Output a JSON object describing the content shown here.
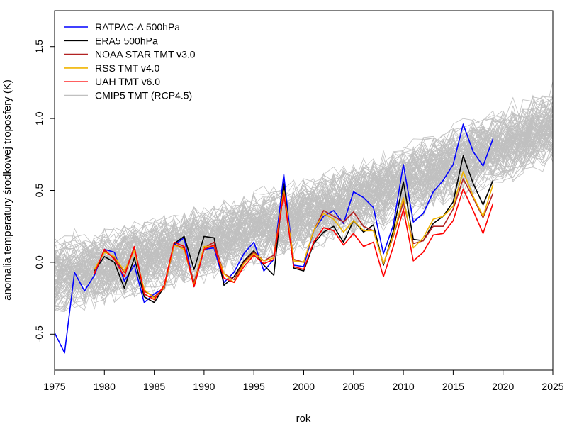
{
  "chart_data": {
    "type": "line",
    "xlabel": "rok",
    "ylabel": "anomalia temperatury środkowej troposfery (K)",
    "xlim": [
      1975,
      2025
    ],
    "ylim": [
      -0.75,
      1.75
    ],
    "xticks": [
      1975,
      1980,
      1985,
      1990,
      1995,
      2000,
      2005,
      2010,
      2015,
      2020,
      2025
    ],
    "yticks": [
      -0.5,
      0.0,
      0.5,
      1.0,
      1.5
    ],
    "xtick_labels": [
      "1975",
      "1980",
      "1985",
      "1990",
      "1995",
      "2000",
      "2005",
      "2010",
      "2015",
      "2020",
      "2025"
    ],
    "ytick_labels": [
      "-0.5",
      "0.0",
      "0.5",
      "1.0",
      "1.5"
    ],
    "grid": false,
    "legend_position": "top-left",
    "series": [
      {
        "name": "RATPAC-A 500hPa",
        "color": "#0000ff",
        "x": [
          1975,
          1976,
          1977,
          1978,
          1979,
          1980,
          1981,
          1982,
          1983,
          1984,
          1985,
          1986,
          1987,
          1988,
          1989,
          1990,
          1991,
          1992,
          1993,
          1994,
          1995,
          1996,
          1997,
          1998,
          1999,
          2000,
          2001,
          2002,
          2003,
          2004,
          2005,
          2006,
          2007,
          2008,
          2009,
          2010,
          2011,
          2012,
          2013,
          2014,
          2015,
          2016,
          2017,
          2018,
          2019
        ],
        "values": [
          -0.49,
          -0.63,
          -0.07,
          -0.2,
          -0.09,
          0.09,
          0.07,
          -0.13,
          -0.02,
          -0.28,
          -0.22,
          -0.18,
          0.12,
          0.17,
          -0.17,
          0.09,
          0.1,
          -0.14,
          -0.07,
          0.06,
          0.14,
          -0.06,
          0.02,
          0.61,
          -0.02,
          -0.03,
          0.22,
          0.32,
          0.36,
          0.27,
          0.49,
          0.45,
          0.38,
          0.06,
          0.26,
          0.68,
          0.28,
          0.34,
          0.49,
          0.57,
          0.68,
          0.96,
          0.77,
          0.67,
          0.86
        ]
      },
      {
        "name": "ERA5 500hPa",
        "color": "#000000",
        "x": [
          1979,
          1980,
          1981,
          1982,
          1983,
          1984,
          1985,
          1986,
          1987,
          1988,
          1989,
          1990,
          1991,
          1992,
          1993,
          1994,
          1995,
          1996,
          1997,
          1998,
          1999,
          2000,
          2001,
          2002,
          2003,
          2004,
          2005,
          2006,
          2007,
          2008,
          2009,
          2010,
          2011,
          2012,
          2013,
          2014,
          2015,
          2016,
          2017,
          2018,
          2019
        ],
        "values": [
          -0.06,
          0.04,
          0.0,
          -0.18,
          0.03,
          -0.24,
          -0.28,
          -0.17,
          0.13,
          0.18,
          -0.05,
          0.18,
          0.17,
          -0.16,
          -0.1,
          0.01,
          0.08,
          -0.02,
          -0.09,
          0.55,
          -0.04,
          -0.06,
          0.13,
          0.21,
          0.25,
          0.14,
          0.29,
          0.21,
          0.26,
          -0.02,
          0.22,
          0.56,
          0.16,
          0.15,
          0.27,
          0.32,
          0.42,
          0.74,
          0.55,
          0.4,
          0.57
        ]
      },
      {
        "name": "NOAA STAR TMT v3.0",
        "color": "#b22222",
        "x": [
          1979,
          1980,
          1981,
          1982,
          1983,
          1984,
          1985,
          1986,
          1987,
          1988,
          1989,
          1990,
          1991,
          1992,
          1993,
          1994,
          1995,
          1996,
          1997,
          1998,
          1999,
          2000,
          2001,
          2002,
          2003,
          2004,
          2005,
          2006,
          2007,
          2008,
          2009,
          2010,
          2011,
          2012,
          2013,
          2014,
          2015,
          2016,
          2017,
          2018,
          2019
        ],
        "values": [
          -0.07,
          0.08,
          0.03,
          -0.07,
          0.1,
          -0.2,
          -0.24,
          -0.18,
          0.12,
          0.1,
          -0.14,
          0.1,
          0.14,
          -0.08,
          -0.12,
          0.0,
          0.07,
          0.01,
          0.05,
          0.5,
          0.02,
          0.0,
          0.22,
          0.36,
          0.32,
          0.28,
          0.35,
          0.25,
          0.22,
          -0.01,
          0.18,
          0.42,
          0.13,
          0.15,
          0.25,
          0.25,
          0.37,
          0.58,
          0.45,
          0.31,
          0.48
        ]
      },
      {
        "name": "RSS TMT v4.0",
        "color": "#f0b400",
        "x": [
          1979,
          1980,
          1981,
          1982,
          1983,
          1984,
          1985,
          1986,
          1987,
          1988,
          1989,
          1990,
          1991,
          1992,
          1993,
          1994,
          1995,
          1996,
          1997,
          1998,
          1999,
          2000,
          2001,
          2002,
          2003,
          2004,
          2005,
          2006,
          2007,
          2008,
          2009,
          2010,
          2011,
          2012,
          2013,
          2014,
          2015,
          2016,
          2017,
          2018,
          2019
        ],
        "values": [
          -0.05,
          0.07,
          0.04,
          -0.06,
          0.08,
          -0.19,
          -0.25,
          -0.17,
          0.12,
          0.09,
          -0.16,
          0.11,
          0.11,
          -0.08,
          -0.14,
          -0.01,
          0.06,
          0.01,
          0.03,
          0.5,
          0.01,
          0.0,
          0.22,
          0.34,
          0.3,
          0.21,
          0.29,
          0.22,
          0.22,
          -0.01,
          0.19,
          0.45,
          0.1,
          0.17,
          0.3,
          0.32,
          0.39,
          0.63,
          0.46,
          0.32,
          0.54
        ]
      },
      {
        "name": "UAH TMT v6.0",
        "color": "#ff0000",
        "x": [
          1979,
          1980,
          1981,
          1982,
          1983,
          1984,
          1985,
          1986,
          1987,
          1988,
          1989,
          1990,
          1991,
          1992,
          1993,
          1994,
          1995,
          1996,
          1997,
          1998,
          1999,
          2000,
          2001,
          2002,
          2003,
          2004,
          2005,
          2006,
          2007,
          2008,
          2009,
          2010,
          2011,
          2012,
          2013,
          2014,
          2015,
          2016,
          2017,
          2018,
          2019
        ],
        "values": [
          -0.08,
          0.09,
          0.02,
          -0.1,
          0.11,
          -0.22,
          -0.26,
          -0.16,
          0.14,
          0.11,
          -0.17,
          0.09,
          0.12,
          -0.11,
          -0.14,
          -0.03,
          0.05,
          -0.01,
          0.02,
          0.48,
          -0.03,
          -0.05,
          0.14,
          0.24,
          0.22,
          0.12,
          0.2,
          0.11,
          0.14,
          -0.1,
          0.11,
          0.37,
          0.01,
          0.07,
          0.19,
          0.2,
          0.29,
          0.51,
          0.36,
          0.2,
          0.41
        ]
      }
    ],
    "ensemble": {
      "name": "CMIP5 TMT (RCP4.5)",
      "color": "#c0c0c0",
      "x_range": [
        1975,
        2025
      ],
      "members": 102,
      "trend_start": -0.1,
      "trend_end": 0.95,
      "spread": 0.25
    }
  }
}
